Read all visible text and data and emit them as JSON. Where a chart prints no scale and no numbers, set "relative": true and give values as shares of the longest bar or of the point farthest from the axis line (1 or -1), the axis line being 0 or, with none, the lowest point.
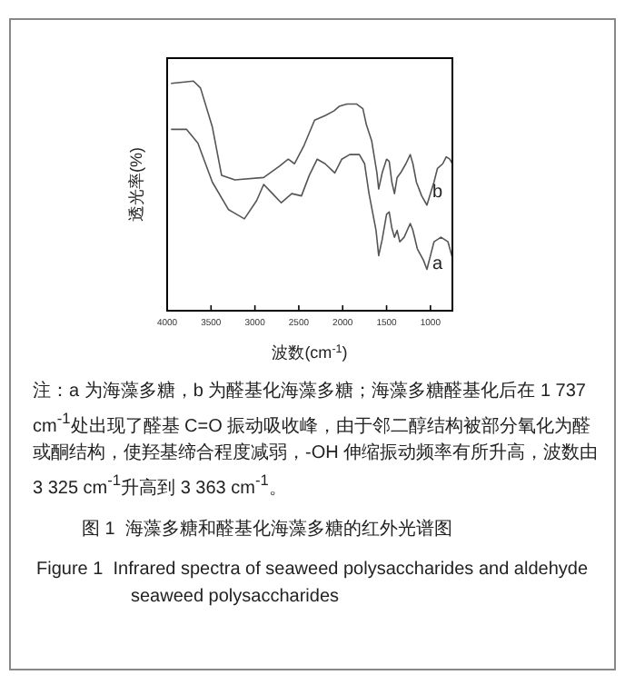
{
  "chart_data": {
    "type": "line",
    "title": "图 1  海藻多糖和醛基化海藻多糖的红外光谱图",
    "subtitle": "Figure 1  Infrared spectra of seaweed polysaccharides and aldehyde seaweed polysaccharides",
    "xlabel": "波数(cm$^{-1}$)",
    "ylabel": "透光率(%)",
    "annotations": [
      "注：a 为海藻多糖，b 为醛基化海藻多糖；海藻多糖醛基化后在 1 737 cm$^{-1}$处出现了醛基 C=O 振动吸收峰，由于邻二醇结构被部分氧化为醛或酮结构，使羟基缔合程度减弱，-OH 伸缩振动频率有所升高，波数由 3 325 cm$^{-1}$升高到 3 363 cm$^{-1}$。"
    ],
    "relative": true,
    "xlim": [
      4000,
      750
    ],
    "xticks": [
      4000,
      3500,
      3000,
      2500,
      2000,
      1500,
      1000
    ],
    "line_style": "solid",
    "series": [
      {
        "name": "b",
        "color": "#555555",
        "x": [
          3950,
          3700,
          3620,
          3485,
          3380,
          3230,
          2900,
          2720,
          2620,
          2550,
          2440,
          2320,
          2200,
          2100,
          2040,
          1950,
          1840,
          1770,
          1730,
          1670,
          1610,
          1590,
          1550,
          1500,
          1470,
          1440,
          1410,
          1380,
          1340,
          1280,
          1230,
          1200,
          1160,
          1100,
          1040,
          1000,
          960,
          920,
          860,
          820,
          780,
          750
        ],
        "values": [
          0.99,
          1,
          0.97,
          0.8,
          0.59,
          0.57,
          0.58,
          0.63,
          0.66,
          0.64,
          0.72,
          0.83,
          0.85,
          0.87,
          0.89,
          0.9,
          0.9,
          0.88,
          0.81,
          0.74,
          0.6,
          0.53,
          0.6,
          0.66,
          0.65,
          0.56,
          0.51,
          0.58,
          0.6,
          0.64,
          0.68,
          0.64,
          0.56,
          0.5,
          0.46,
          0.51,
          0.56,
          0.62,
          0.64,
          0.67,
          0.66,
          0.64
        ]
      },
      {
        "name": "a",
        "color": "#555555",
        "x": [
          3950,
          3780,
          3650,
          3485,
          3300,
          3120,
          2980,
          2900,
          2800,
          2700,
          2580,
          2470,
          2380,
          2290,
          2200,
          2090,
          2010,
          1920,
          1810,
          1750,
          1700,
          1620,
          1590,
          1550,
          1500,
          1470,
          1440,
          1410,
          1380,
          1350,
          1300,
          1230,
          1200,
          1150,
          1080,
          1040,
          1000,
          960,
          920,
          880,
          840,
          800,
          750
        ],
        "values": [
          0.79,
          0.79,
          0.73,
          0.56,
          0.44,
          0.4,
          0.48,
          0.55,
          0.51,
          0.47,
          0.51,
          0.5,
          0.59,
          0.66,
          0.64,
          0.6,
          0.66,
          0.68,
          0.68,
          0.64,
          0.51,
          0.35,
          0.24,
          0.31,
          0.42,
          0.43,
          0.36,
          0.32,
          0.35,
          0.3,
          0.32,
          0.38,
          0.35,
          0.27,
          0.22,
          0.18,
          0.24,
          0.3,
          0.31,
          0.32,
          0.31,
          0.3,
          0.23
        ]
      }
    ]
  }
}
